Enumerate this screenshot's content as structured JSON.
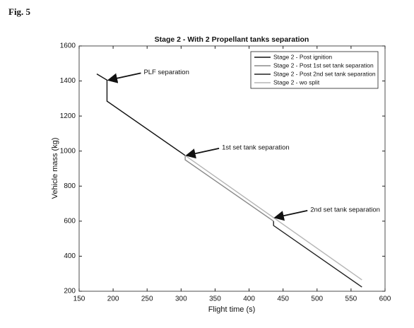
{
  "figure_label": "Fig. 5",
  "chart_data": {
    "type": "line",
    "title": "Stage 2 - With 2 Propellant tanks separation",
    "xlabel": "Flight time (s)",
    "ylabel": "Vehicle mass (kg)",
    "xlim": [
      150,
      600
    ],
    "xticks": [
      150,
      200,
      250,
      300,
      350,
      400,
      450,
      500,
      550,
      600
    ],
    "ylim": [
      200,
      1600
    ],
    "yticks": [
      200,
      400,
      600,
      800,
      1000,
      1200,
      1400,
      1600
    ],
    "grid": false,
    "legend": "upper right",
    "series": [
      {
        "name": "Stage 2 - Post ignition",
        "color": "#111111",
        "x": [
          176,
          191,
          191,
          306
        ],
        "values": [
          1440,
          1405,
          1285,
          975
        ]
      },
      {
        "name": "Stage 2 - Post 1st set tank separation",
        "color": "#8a8a8a",
        "x": [
          306,
          306,
          436
        ],
        "values": [
          975,
          950,
          600
        ]
      },
      {
        "name": "Stage 2 - Post 2nd set tank separation",
        "color": "#222222",
        "x": [
          436,
          436,
          566
        ],
        "values": [
          600,
          575,
          224
        ]
      },
      {
        "name": "Stage 2 - wo split",
        "color": "#b5b5b5",
        "x": [
          306,
          566
        ],
        "values": [
          975,
          265
        ]
      }
    ],
    "annotations": [
      {
        "text": "PLF separation",
        "x": 191,
        "y": 1405
      },
      {
        "text": "1st set tank separation",
        "x": 306,
        "y": 975
      },
      {
        "text": "2nd set tank separation",
        "x": 436,
        "y": 620
      }
    ]
  }
}
